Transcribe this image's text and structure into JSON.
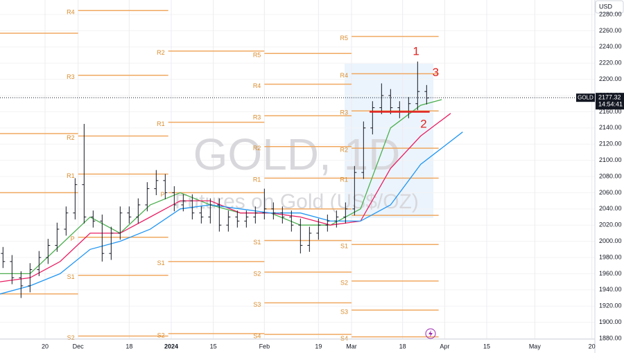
{
  "chart_data": {
    "type": "ohlc",
    "title": "GOLD, 1D",
    "subtitle": "Futures on Gold (US$/OZ)",
    "currency": "USD",
    "symbol": "GOLD",
    "last_price": 2177.32,
    "countdown": "14:54:41",
    "grid": true,
    "bar_color": "#131722",
    "x": [
      5,
      8,
      11,
      14,
      17,
      20,
      23,
      26,
      29,
      32,
      35,
      38,
      41,
      44,
      47,
      50,
      53,
      56,
      59,
      62,
      65,
      68,
      71,
      74,
      77,
      80,
      83,
      86,
      89,
      92,
      95,
      98,
      101,
      104,
      107,
      110,
      113,
      116,
      119,
      122,
      125,
      128,
      131,
      134,
      137,
      140,
      143,
      146
    ],
    "open": [
      1985,
      1975,
      1955,
      1945,
      1965,
      1980,
      1995,
      2015,
      2035,
      2070,
      2030,
      2025,
      1985,
      2010,
      2035,
      2030,
      2045,
      2065,
      2075,
      2060,
      2045,
      2050,
      2035,
      2030,
      2045,
      2020,
      2030,
      2025,
      2030,
      2035,
      2040,
      2035,
      2030,
      2020,
      1995,
      2010,
      2020,
      2025,
      2030,
      2040,
      2085,
      2140,
      2165,
      2180,
      2165,
      2160,
      2170,
      2185
    ],
    "high": [
      1993,
      1983,
      1963,
      1973,
      1988,
      2003,
      2023,
      2043,
      2078,
      2145,
      2038,
      2033,
      2018,
      2043,
      2043,
      2053,
      2073,
      2088,
      2083,
      2068,
      2058,
      2058,
      2043,
      2053,
      2053,
      2038,
      2038,
      2038,
      2043,
      2065,
      2048,
      2043,
      2038,
      2028,
      2018,
      2028,
      2033,
      2038,
      2048,
      2093,
      2148,
      2173,
      2195,
      2188,
      2173,
      2178,
      2222,
      2193
    ],
    "low": [
      1967,
      1947,
      1930,
      1937,
      1957,
      1972,
      1987,
      2007,
      2027,
      2022,
      2017,
      1975,
      1977,
      2002,
      2022,
      2022,
      2037,
      2057,
      2052,
      2037,
      2037,
      2027,
      2022,
      2022,
      2012,
      2012,
      2017,
      2017,
      2022,
      2027,
      2027,
      2022,
      2012,
      1985,
      1987,
      2002,
      2012,
      2017,
      2022,
      2032,
      2077,
      2132,
      2157,
      2157,
      2152,
      2152,
      2162,
      2169
    ],
    "close": [
      1975,
      1955,
      1945,
      1965,
      1980,
      1995,
      2015,
      2035,
      2070,
      2030,
      2025,
      1985,
      2010,
      2035,
      2030,
      2045,
      2065,
      2075,
      2060,
      2045,
      2050,
      2035,
      2030,
      2045,
      2020,
      2030,
      2025,
      2030,
      2035,
      2040,
      2035,
      2030,
      2020,
      1995,
      2010,
      2020,
      2025,
      2030,
      2040,
      2085,
      2140,
      2165,
      2180,
      2165,
      2160,
      2170,
      2185,
      2177
    ],
    "moving_averages": [
      {
        "color": "#4caf50",
        "x": [
          4,
          14,
          24,
          34,
          44,
          54,
          64,
          74,
          84,
          94,
          104,
          114,
          124,
          134,
          144,
          151
        ],
        "values": [
          1960,
          1960,
          1995,
          2030,
          2010,
          2045,
          2060,
          2045,
          2035,
          2035,
          2020,
          2020,
          2040,
          2140,
          2168,
          2175
        ]
      },
      {
        "color": "#e91e63",
        "x": [
          4,
          14,
          24,
          34,
          44,
          54,
          64,
          74,
          84,
          94,
          104,
          114,
          124,
          134,
          144,
          154
        ],
        "values": [
          1950,
          1955,
          1975,
          2010,
          2010,
          2030,
          2050,
          2050,
          2035,
          2035,
          2030,
          2020,
          2025,
          2090,
          2130,
          2158
        ]
      },
      {
        "color": "#2196f3",
        "x": [
          4,
          14,
          24,
          34,
          44,
          54,
          64,
          74,
          84,
          94,
          104,
          114,
          124,
          134,
          144,
          158
        ],
        "values": [
          1935,
          1945,
          1960,
          1990,
          2000,
          2015,
          2040,
          2045,
          2040,
          2035,
          2035,
          2025,
          2025,
          2045,
          2095,
          2135
        ]
      }
    ],
    "pivot_color": "#f0a860",
    "pivots": [
      {
        "x": [
          4,
          30
        ],
        "levels": [
          {
            "value": 2257
          },
          {
            "value": 2133
          },
          {
            "value": 2060
          },
          {
            "value": 1935
          }
        ]
      },
      {
        "x": [
          30,
          60
        ],
        "levels": [
          {
            "label": "R4",
            "value": 2285
          },
          {
            "label": "R3",
            "value": 2205
          },
          {
            "label": "R2",
            "value": 2130
          },
          {
            "label": "R1",
            "value": 2083
          },
          {
            "label": "P",
            "value": 2005
          },
          {
            "label": "S1",
            "value": 1958
          },
          {
            "label": "S2",
            "value": 1883
          }
        ]
      },
      {
        "x": [
          60,
          92
        ],
        "levels": [
          {
            "label": "R2",
            "value": 2235
          },
          {
            "label": "R1",
            "value": 2147
          },
          {
            "label": "P",
            "value": 2060
          },
          {
            "label": "S1",
            "value": 1975
          },
          {
            "label": "S2",
            "value": 1886
          }
        ]
      },
      {
        "x": [
          92,
          121
        ],
        "levels": [
          {
            "label": "R5",
            "value": 2232
          },
          {
            "label": "R4",
            "value": 2194
          },
          {
            "label": "R3",
            "value": 2155
          },
          {
            "label": "R2",
            "value": 2117
          },
          {
            "label": "R1",
            "value": 2078
          },
          {
            "value": 2040
          },
          {
            "label": "S1",
            "value": 2001
          },
          {
            "label": "S2",
            "value": 1962
          },
          {
            "label": "S3",
            "value": 1924
          },
          {
            "label": "S4",
            "value": 1885
          }
        ]
      },
      {
        "x": [
          121,
          150
        ],
        "levels": [
          {
            "label": "R5",
            "value": 2253
          },
          {
            "label": "R4",
            "value": 2207
          },
          {
            "label": "R3",
            "value": 2161
          },
          {
            "label": "R2",
            "value": 2115
          },
          {
            "label": "R1",
            "value": 2078
          },
          {
            "value": 2032
          },
          {
            "label": "S1",
            "value": 1996
          },
          {
            "label": "S2",
            "value": 1951
          },
          {
            "label": "S3",
            "value": 1915
          },
          {
            "label": "S4",
            "value": 1882
          }
        ]
      }
    ],
    "hline": {
      "value": 2160,
      "x": [
        127,
        147
      ],
      "color": "#e02020"
    },
    "annotations": [
      {
        "text": "1",
        "x": 142.5,
        "y": 2234
      },
      {
        "text": "3",
        "x": 149,
        "y": 2208
      },
      {
        "text": "2",
        "x": 145,
        "y": 2144
      }
    ],
    "xlim": [
      4,
      202
    ],
    "xticks": [
      {
        "value": 19,
        "label": "20"
      },
      {
        "value": 30,
        "label": "Dec"
      },
      {
        "value": 47,
        "label": "18"
      },
      {
        "value": 61,
        "label": "2024"
      },
      {
        "value": 75,
        "label": "15"
      },
      {
        "value": 92,
        "label": "Feb"
      },
      {
        "value": 110,
        "label": "19"
      },
      {
        "value": 121,
        "label": "Mar"
      },
      {
        "value": 138,
        "label": "18"
      },
      {
        "value": 152,
        "label": "Apr"
      },
      {
        "value": 166,
        "label": "15"
      },
      {
        "value": 182,
        "label": "May"
      },
      {
        "value": 201,
        "label": "20"
      }
    ],
    "ylim": [
      1880,
      2298
    ],
    "yticks": [
      {
        "value": 1880,
        "label": "1880.00"
      },
      {
        "value": 1900,
        "label": "1900.00"
      },
      {
        "value": 1920,
        "label": "1920.00"
      },
      {
        "value": 1940,
        "label": "1940.00"
      },
      {
        "value": 1960,
        "label": "1960.00"
      },
      {
        "value": 1980,
        "label": "1980.00"
      },
      {
        "value": 2000,
        "label": "2000.00"
      },
      {
        "value": 2020,
        "label": "2020.00"
      },
      {
        "value": 2040,
        "label": "2040.00"
      },
      {
        "value": 2060,
        "label": "2060.00"
      },
      {
        "value": 2080,
        "label": "2080.00"
      },
      {
        "value": 2100,
        "label": "2100.00"
      },
      {
        "value": 2120,
        "label": "2120.00"
      },
      {
        "value": 2140,
        "label": "2140.00"
      },
      {
        "value": 2160,
        "label": "2160.00"
      },
      {
        "value": 2180,
        "label": "2180.00"
      },
      {
        "value": 2200,
        "label": "2200.00"
      },
      {
        "value": 2220,
        "label": "2220.00"
      },
      {
        "value": 2240,
        "label": "2240.00"
      },
      {
        "value": 2260,
        "label": "2260.00"
      },
      {
        "value": 2280,
        "label": "2280.00"
      }
    ]
  }
}
